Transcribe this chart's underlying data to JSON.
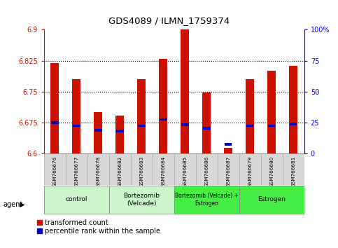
{
  "title": "GDS4089 / ILMN_1759374",
  "samples": [
    "GSM766676",
    "GSM766677",
    "GSM766678",
    "GSM766682",
    "GSM766683",
    "GSM766684",
    "GSM766685",
    "GSM766686",
    "GSM766687",
    "GSM766679",
    "GSM766680",
    "GSM766681"
  ],
  "red_values": [
    6.82,
    6.78,
    6.7,
    6.693,
    6.78,
    6.83,
    6.9,
    6.748,
    6.615,
    6.78,
    6.8,
    6.812
  ],
  "blue_values": [
    6.675,
    6.668,
    6.657,
    6.655,
    6.668,
    6.683,
    6.67,
    6.662,
    6.623,
    6.668,
    6.668,
    6.672
  ],
  "ymin": 6.6,
  "ymax": 6.9,
  "yticks": [
    6.6,
    6.675,
    6.75,
    6.825,
    6.9
  ],
  "ytick_labels": [
    "6.6",
    "6.675",
    "6.75",
    "6.825",
    "6.9"
  ],
  "right_yticks": [
    0,
    25,
    50,
    75,
    100
  ],
  "right_ytick_labels": [
    "0",
    "25",
    "50",
    "75",
    "100%"
  ],
  "grid_lines": [
    6.675,
    6.75,
    6.825
  ],
  "groups": [
    {
      "label": "control",
      "start": 0,
      "end": 3,
      "color": "#ccf5cc"
    },
    {
      "label": "Bortezomib\n(Velcade)",
      "start": 3,
      "end": 6,
      "color": "#ccf5cc"
    },
    {
      "label": "Bortezomib (Velcade) +\nEstrogen",
      "start": 6,
      "end": 9,
      "color": "#44ee44"
    },
    {
      "label": "Estrogen",
      "start": 9,
      "end": 12,
      "color": "#44ee44"
    }
  ],
  "bar_width": 0.4,
  "red_color": "#cc1100",
  "blue_color": "#0000cc",
  "plot_bg": "#ffffff",
  "tick_bg": "#d8d8d8",
  "legend_red": "transformed count",
  "legend_blue": "percentile rank within the sample"
}
